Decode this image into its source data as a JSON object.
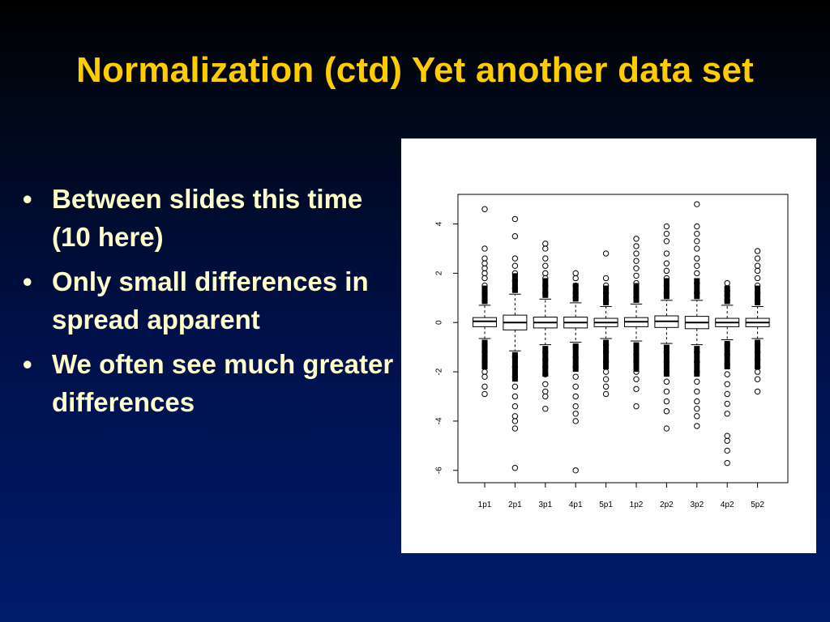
{
  "slide": {
    "title": "Normalization (ctd) Yet another data set",
    "bullets": [
      "Between slides this time (10 here)",
      "Only small differences in spread apparent",
      "We often see much greater differences"
    ]
  },
  "colors": {
    "title": "#ffcc00",
    "bullet_text": "#ffffcc",
    "background_top": "#000000",
    "background_bottom": "#001c6c",
    "chart_background": "#ffffff"
  },
  "chart_data": {
    "type": "boxplot",
    "title": "",
    "xlabel": "",
    "ylabel": "",
    "ylim": [
      -6.5,
      5.2
    ],
    "yticks": [
      -6,
      -4,
      -2,
      0,
      2,
      4
    ],
    "categories": [
      "1p1",
      "2p1",
      "3p1",
      "4p1",
      "5p1",
      "1p2",
      "2p2",
      "3p2",
      "4p2",
      "5p2"
    ],
    "boxes": [
      {
        "label": "1p1",
        "q1": -0.17,
        "median": 0.05,
        "q3": 0.2,
        "whisker_low": -0.65,
        "whisker_high": 0.7,
        "outliers_high": [
          0.9,
          1.2,
          1.5,
          1.8,
          2.0,
          2.2,
          2.4,
          2.6,
          3.0,
          4.6
        ],
        "outliers_low": [
          -0.9,
          -1.2,
          -1.6,
          -2.0,
          -2.2,
          -2.6,
          -2.9
        ]
      },
      {
        "label": "2p1",
        "q1": -0.3,
        "median": 0.0,
        "q3": 0.3,
        "whisker_low": -1.15,
        "whisker_high": 1.15,
        "outliers_high": [
          1.4,
          1.7,
          2.0,
          2.3,
          2.6,
          3.5,
          4.2
        ],
        "outliers_low": [
          -1.4,
          -1.8,
          -2.2,
          -2.6,
          -3.0,
          -3.4,
          -3.8,
          -4.0,
          -4.3,
          -5.9
        ]
      },
      {
        "label": "3p1",
        "q1": -0.22,
        "median": 0.0,
        "q3": 0.22,
        "whisker_low": -0.9,
        "whisker_high": 0.95,
        "outliers_high": [
          1.2,
          1.5,
          1.8,
          2.0,
          2.3,
          2.6,
          3.0,
          3.2
        ],
        "outliers_low": [
          -1.2,
          -1.5,
          -1.8,
          -2.1,
          -2.5,
          -2.8,
          -3.0,
          -3.5
        ]
      },
      {
        "label": "4p1",
        "q1": -0.22,
        "median": 0.0,
        "q3": 0.22,
        "whisker_low": -0.8,
        "whisker_high": 0.8,
        "outliers_high": [
          1.0,
          1.2,
          1.5,
          1.8,
          2.0
        ],
        "outliers_low": [
          -1.0,
          -1.4,
          -1.8,
          -2.2,
          -2.6,
          -3.0,
          -3.4,
          -3.7,
          -4.0,
          -6.0
        ]
      },
      {
        "label": "5p1",
        "q1": -0.17,
        "median": 0.0,
        "q3": 0.17,
        "whisker_low": -0.65,
        "whisker_high": 0.65,
        "outliers_high": [
          0.9,
          1.2,
          1.5,
          1.8,
          2.8
        ],
        "outliers_low": [
          -0.9,
          -1.2,
          -1.6,
          -2.0,
          -2.3,
          -2.6,
          -2.9
        ]
      },
      {
        "label": "1p2",
        "q1": -0.17,
        "median": 0.03,
        "q3": 0.2,
        "whisker_low": -0.75,
        "whisker_high": 0.75,
        "outliers_high": [
          1.0,
          1.3,
          1.6,
          1.9,
          2.2,
          2.5,
          2.8,
          3.1,
          3.4
        ],
        "outliers_low": [
          -1.0,
          -1.3,
          -1.6,
          -2.0,
          -2.3,
          -2.7,
          -3.4
        ]
      },
      {
        "label": "2p2",
        "q1": -0.2,
        "median": 0.05,
        "q3": 0.27,
        "whisker_low": -0.85,
        "whisker_high": 0.9,
        "outliers_high": [
          1.2,
          1.5,
          1.8,
          2.1,
          2.4,
          2.8,
          3.3,
          3.6,
          3.9
        ],
        "outliers_low": [
          -1.2,
          -1.6,
          -2.0,
          -2.4,
          -2.8,
          -3.2,
          -3.6,
          -4.3
        ]
      },
      {
        "label": "3p2",
        "q1": -0.25,
        "median": 0.0,
        "q3": 0.25,
        "whisker_low": -0.9,
        "whisker_high": 0.9,
        "outliers_high": [
          1.2,
          1.6,
          2.0,
          2.3,
          2.6,
          3.0,
          3.3,
          3.6,
          3.9,
          4.8
        ],
        "outliers_low": [
          -1.2,
          -1.6,
          -2.0,
          -2.4,
          -2.8,
          -3.2,
          -3.5,
          -3.8,
          -4.2
        ]
      },
      {
        "label": "4p2",
        "q1": -0.17,
        "median": 0.0,
        "q3": 0.17,
        "whisker_low": -0.7,
        "whisker_high": 0.7,
        "outliers_high": [
          0.9,
          1.1,
          1.3,
          1.6
        ],
        "outliers_low": [
          -0.9,
          -1.3,
          -1.7,
          -2.1,
          -2.5,
          -2.9,
          -3.3,
          -3.7,
          -4.6,
          -4.8,
          -5.2,
          -5.7
        ]
      },
      {
        "label": "5p2",
        "q1": -0.17,
        "median": 0.0,
        "q3": 0.17,
        "whisker_low": -0.65,
        "whisker_high": 0.65,
        "outliers_high": [
          0.9,
          1.2,
          1.5,
          1.8,
          2.1,
          2.3,
          2.6,
          2.9
        ],
        "outliers_low": [
          -0.9,
          -1.2,
          -1.5,
          -1.8,
          -2.0,
          -2.3,
          -2.8
        ]
      }
    ]
  }
}
